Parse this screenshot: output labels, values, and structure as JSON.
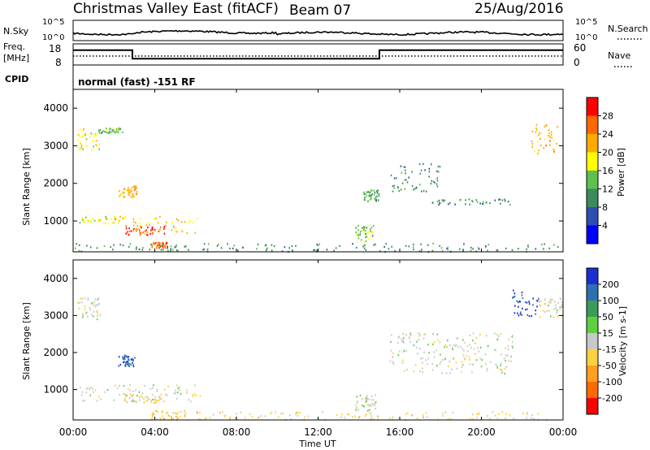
{
  "header": {
    "station": "Christmas Valley East (fitACF)",
    "beam": "Beam 07",
    "date": "25/Aug/2016"
  },
  "noise_panel": {
    "left_label": "N.Sky",
    "left_ticks": [
      "10^5",
      "10^0"
    ],
    "right_label": "N.Search",
    "right_ticks": [
      "10^5",
      "10^0"
    ]
  },
  "freq_panel": {
    "left_label_line1": "Freq.",
    "left_label_line2": "[MHz]",
    "left_ticks": [
      "18",
      "8"
    ],
    "right_label": "Nave",
    "right_ticks": [
      "60",
      "0"
    ],
    "cpid_label": "CPID",
    "cpid_text": "normal (fast) -151 RF"
  },
  "power_panel": {
    "ylabel": "Slant Range [km]",
    "yticks": [
      "4000",
      "3000",
      "2000",
      "1000"
    ],
    "colorbar_label": "Power [dB]",
    "colorbar_ticks": [
      "28",
      "24",
      "20",
      "16",
      "12",
      "8",
      "4"
    ],
    "colors": [
      "#0000ff",
      "#2f4fb0",
      "#3a8c5a",
      "#5fbf4f",
      "#ffff00",
      "#ffaa00",
      "#ff6600",
      "#ff0000"
    ]
  },
  "velocity_panel": {
    "ylabel": "Slant Range [km]",
    "yticks": [
      "4000",
      "3000",
      "2000",
      "1000"
    ],
    "colorbar_label": "Velocity [m s-1]",
    "colorbar_ticks": [
      "200",
      "100",
      "50",
      "15",
      "-15",
      "-50",
      "-100",
      "-200"
    ],
    "colors": [
      "#1a2fd0",
      "#2f6fb0",
      "#3a9c5a",
      "#5fcf3f",
      "#c8c8c8",
      "#ffd040",
      "#ffa020",
      "#ff6a00",
      "#ff0000"
    ]
  },
  "xaxis": {
    "ticks": [
      "00:00",
      "04:00",
      "08:00",
      "12:00",
      "16:00",
      "20:00",
      "00:00"
    ],
    "label": "Time UT"
  },
  "chart_data": [
    {
      "type": "line",
      "title": "N.Sky",
      "x": [
        0,
        4,
        8,
        12,
        16,
        20,
        24
      ],
      "y_scale": "log",
      "ylim": [
        1,
        100000
      ]
    },
    {
      "type": "line",
      "series": [
        {
          "name": "Freq. [MHz]",
          "x": [
            0,
            2.9,
            2.9,
            15,
            15,
            24
          ],
          "values": [
            15,
            15,
            11,
            11,
            15,
            15
          ]
        }
      ],
      "ylim": [
        8,
        18
      ]
    },
    {
      "type": "heatmap",
      "title": "Power [dB]",
      "ylabel": "Slant Range [km]",
      "xlabel": "Time UT",
      "xlim": [
        0,
        24
      ],
      "ylim": [
        180,
        4500
      ],
      "clim": [
        0,
        32
      ],
      "regions": [
        {
          "t": [
            0.2,
            1.3
          ],
          "r": [
            2900,
            3500
          ],
          "value": 18
        },
        {
          "t": [
            1.2,
            2.4
          ],
          "r": [
            3350,
            3500
          ],
          "value": 14
        },
        {
          "t": [
            2.2,
            3.1
          ],
          "r": [
            1650,
            1950
          ],
          "value": 22
        },
        {
          "t": [
            0.3,
            2.6
          ],
          "r": [
            950,
            1150
          ],
          "value": 18
        },
        {
          "t": [
            2.5,
            4.5
          ],
          "r": [
            650,
            900
          ],
          "value": 28
        },
        {
          "t": [
            2.8,
            6.2
          ],
          "r": [
            700,
            1150
          ],
          "value": 20
        },
        {
          "t": [
            3.8,
            4.6
          ],
          "r": [
            300,
            450
          ],
          "value": 26
        },
        {
          "t": [
            0,
            24
          ],
          "r": [
            200,
            420
          ],
          "value": 10
        },
        {
          "t": [
            13.8,
            14.7
          ],
          "r": [
            450,
            900
          ],
          "value": 14
        },
        {
          "t": [
            14.2,
            15.0
          ],
          "r": [
            1550,
            1850
          ],
          "value": 12
        },
        {
          "t": [
            15.5,
            18.0
          ],
          "r": [
            1800,
            2550
          ],
          "value": 10
        },
        {
          "t": [
            17.5,
            21.5
          ],
          "r": [
            1450,
            1600
          ],
          "value": 10
        },
        {
          "t": [
            22.4,
            24
          ],
          "r": [
            2800,
            3600
          ],
          "value": 22
        }
      ]
    },
    {
      "type": "heatmap",
      "title": "Velocity [m s-1]",
      "ylabel": "Slant Range [km]",
      "xlabel": "Time UT",
      "xlim": [
        0,
        24
      ],
      "ylim": [
        180,
        4500
      ],
      "clim": [
        -250,
        250
      ],
      "regions": [
        {
          "t": [
            0.2,
            1.3
          ],
          "r": [
            2900,
            3500
          ],
          "value": 0
        },
        {
          "t": [
            2.2,
            3.0
          ],
          "r": [
            1650,
            1950
          ],
          "value": 180
        },
        {
          "t": [
            0.3,
            6.2
          ],
          "r": [
            700,
            1150
          ],
          "value": 0
        },
        {
          "t": [
            2.5,
            4.5
          ],
          "r": [
            650,
            900
          ],
          "value": -40
        },
        {
          "t": [
            3.8,
            5.5
          ],
          "r": [
            200,
            450
          ],
          "value": -60
        },
        {
          "t": [
            6,
            24
          ],
          "r": [
            200,
            420
          ],
          "value": -45
        },
        {
          "t": [
            13.8,
            14.8
          ],
          "r": [
            450,
            900
          ],
          "value": 0
        },
        {
          "t": [
            15.5,
            21.5
          ],
          "r": [
            1450,
            2550
          ],
          "value": 0
        },
        {
          "t": [
            21.5,
            22.8
          ],
          "r": [
            3000,
            3700
          ],
          "value": 210
        },
        {
          "t": [
            22.8,
            24
          ],
          "r": [
            2900,
            3500
          ],
          "value": 0
        }
      ]
    }
  ]
}
